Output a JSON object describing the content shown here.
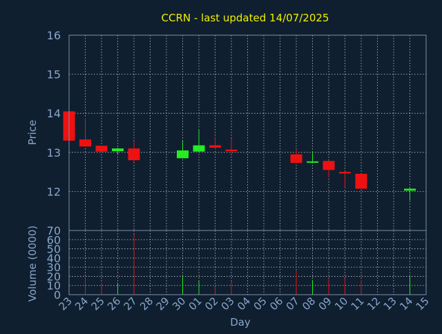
{
  "chart_data": {
    "type": "candlestick",
    "title": "CCRN - last updated 14/07/2025",
    "xlabel": "Day",
    "x_tick_labels": [
      "23",
      "24",
      "25",
      "26",
      "27",
      "28",
      "29",
      "30",
      "01",
      "02",
      "03",
      "04",
      "05",
      "06",
      "07",
      "08",
      "09",
      "10",
      "11",
      "12",
      "13",
      "14",
      "15"
    ],
    "price_panel": {
      "ylabel": "Price",
      "ylim": [
        11,
        16
      ],
      "y_ticks": [
        12,
        13,
        14,
        15,
        16
      ],
      "grid": true
    },
    "volume_panel": {
      "ylabel": "Volume (0000)",
      "ylim": [
        0,
        70
      ],
      "y_ticks": [
        0,
        10,
        20,
        30,
        40,
        50,
        60,
        70
      ],
      "grid": true
    },
    "candles": [
      {
        "day": "23",
        "open": 14.05,
        "high": 14.05,
        "low": 13.3,
        "close": 13.3,
        "volume": 0
      },
      {
        "day": "24",
        "open": 13.33,
        "high": 13.88,
        "low": 13.15,
        "close": 13.15,
        "volume": 19
      },
      {
        "day": "25",
        "open": 13.17,
        "high": 13.17,
        "low": 13.02,
        "close": 13.02,
        "volume": 13
      },
      {
        "day": "26",
        "open": 13.03,
        "high": 13.12,
        "low": 12.95,
        "close": 13.1,
        "volume": 13
      },
      {
        "day": "27",
        "open": 13.1,
        "high": 13.28,
        "low": 12.75,
        "close": 12.8,
        "volume": 66
      },
      {
        "day": "30",
        "open": 12.85,
        "high": 13.3,
        "low": 12.85,
        "close": 13.05,
        "volume": 20
      },
      {
        "day": "01",
        "open": 13.02,
        "high": 13.6,
        "low": 13.0,
        "close": 13.18,
        "volume": 15
      },
      {
        "day": "02",
        "open": 13.18,
        "high": 13.4,
        "low": 13.08,
        "close": 13.12,
        "volume": 9
      },
      {
        "day": "03",
        "open": 13.07,
        "high": 13.35,
        "low": 12.98,
        "close": 13.03,
        "volume": 15
      },
      {
        "day": "07",
        "open": 12.95,
        "high": 13.08,
        "low": 12.73,
        "close": 12.73,
        "volume": 26
      },
      {
        "day": "08",
        "open": 12.75,
        "high": 13.02,
        "low": 12.72,
        "close": 12.77,
        "volume": 16
      },
      {
        "day": "09",
        "open": 12.78,
        "high": 12.78,
        "low": 12.35,
        "close": 12.55,
        "volume": 17
      },
      {
        "day": "10",
        "open": 12.5,
        "high": 12.5,
        "low": 12.1,
        "close": 12.46,
        "volume": 18
      },
      {
        "day": "11",
        "open": 12.45,
        "high": 12.45,
        "low": 12.07,
        "close": 12.07,
        "volume": 16
      },
      {
        "day": "14",
        "open": 12.02,
        "high": 12.1,
        "low": 11.77,
        "close": 12.07,
        "volume": 20
      }
    ]
  },
  "colors": {
    "background": "#0f1f30",
    "plot_border": "#7f8fa8",
    "grid": "#c8c8c8",
    "title": "#f0f000",
    "axis_text": "#8aa6c9",
    "up": "#22ee22",
    "down": "#ee1111"
  }
}
